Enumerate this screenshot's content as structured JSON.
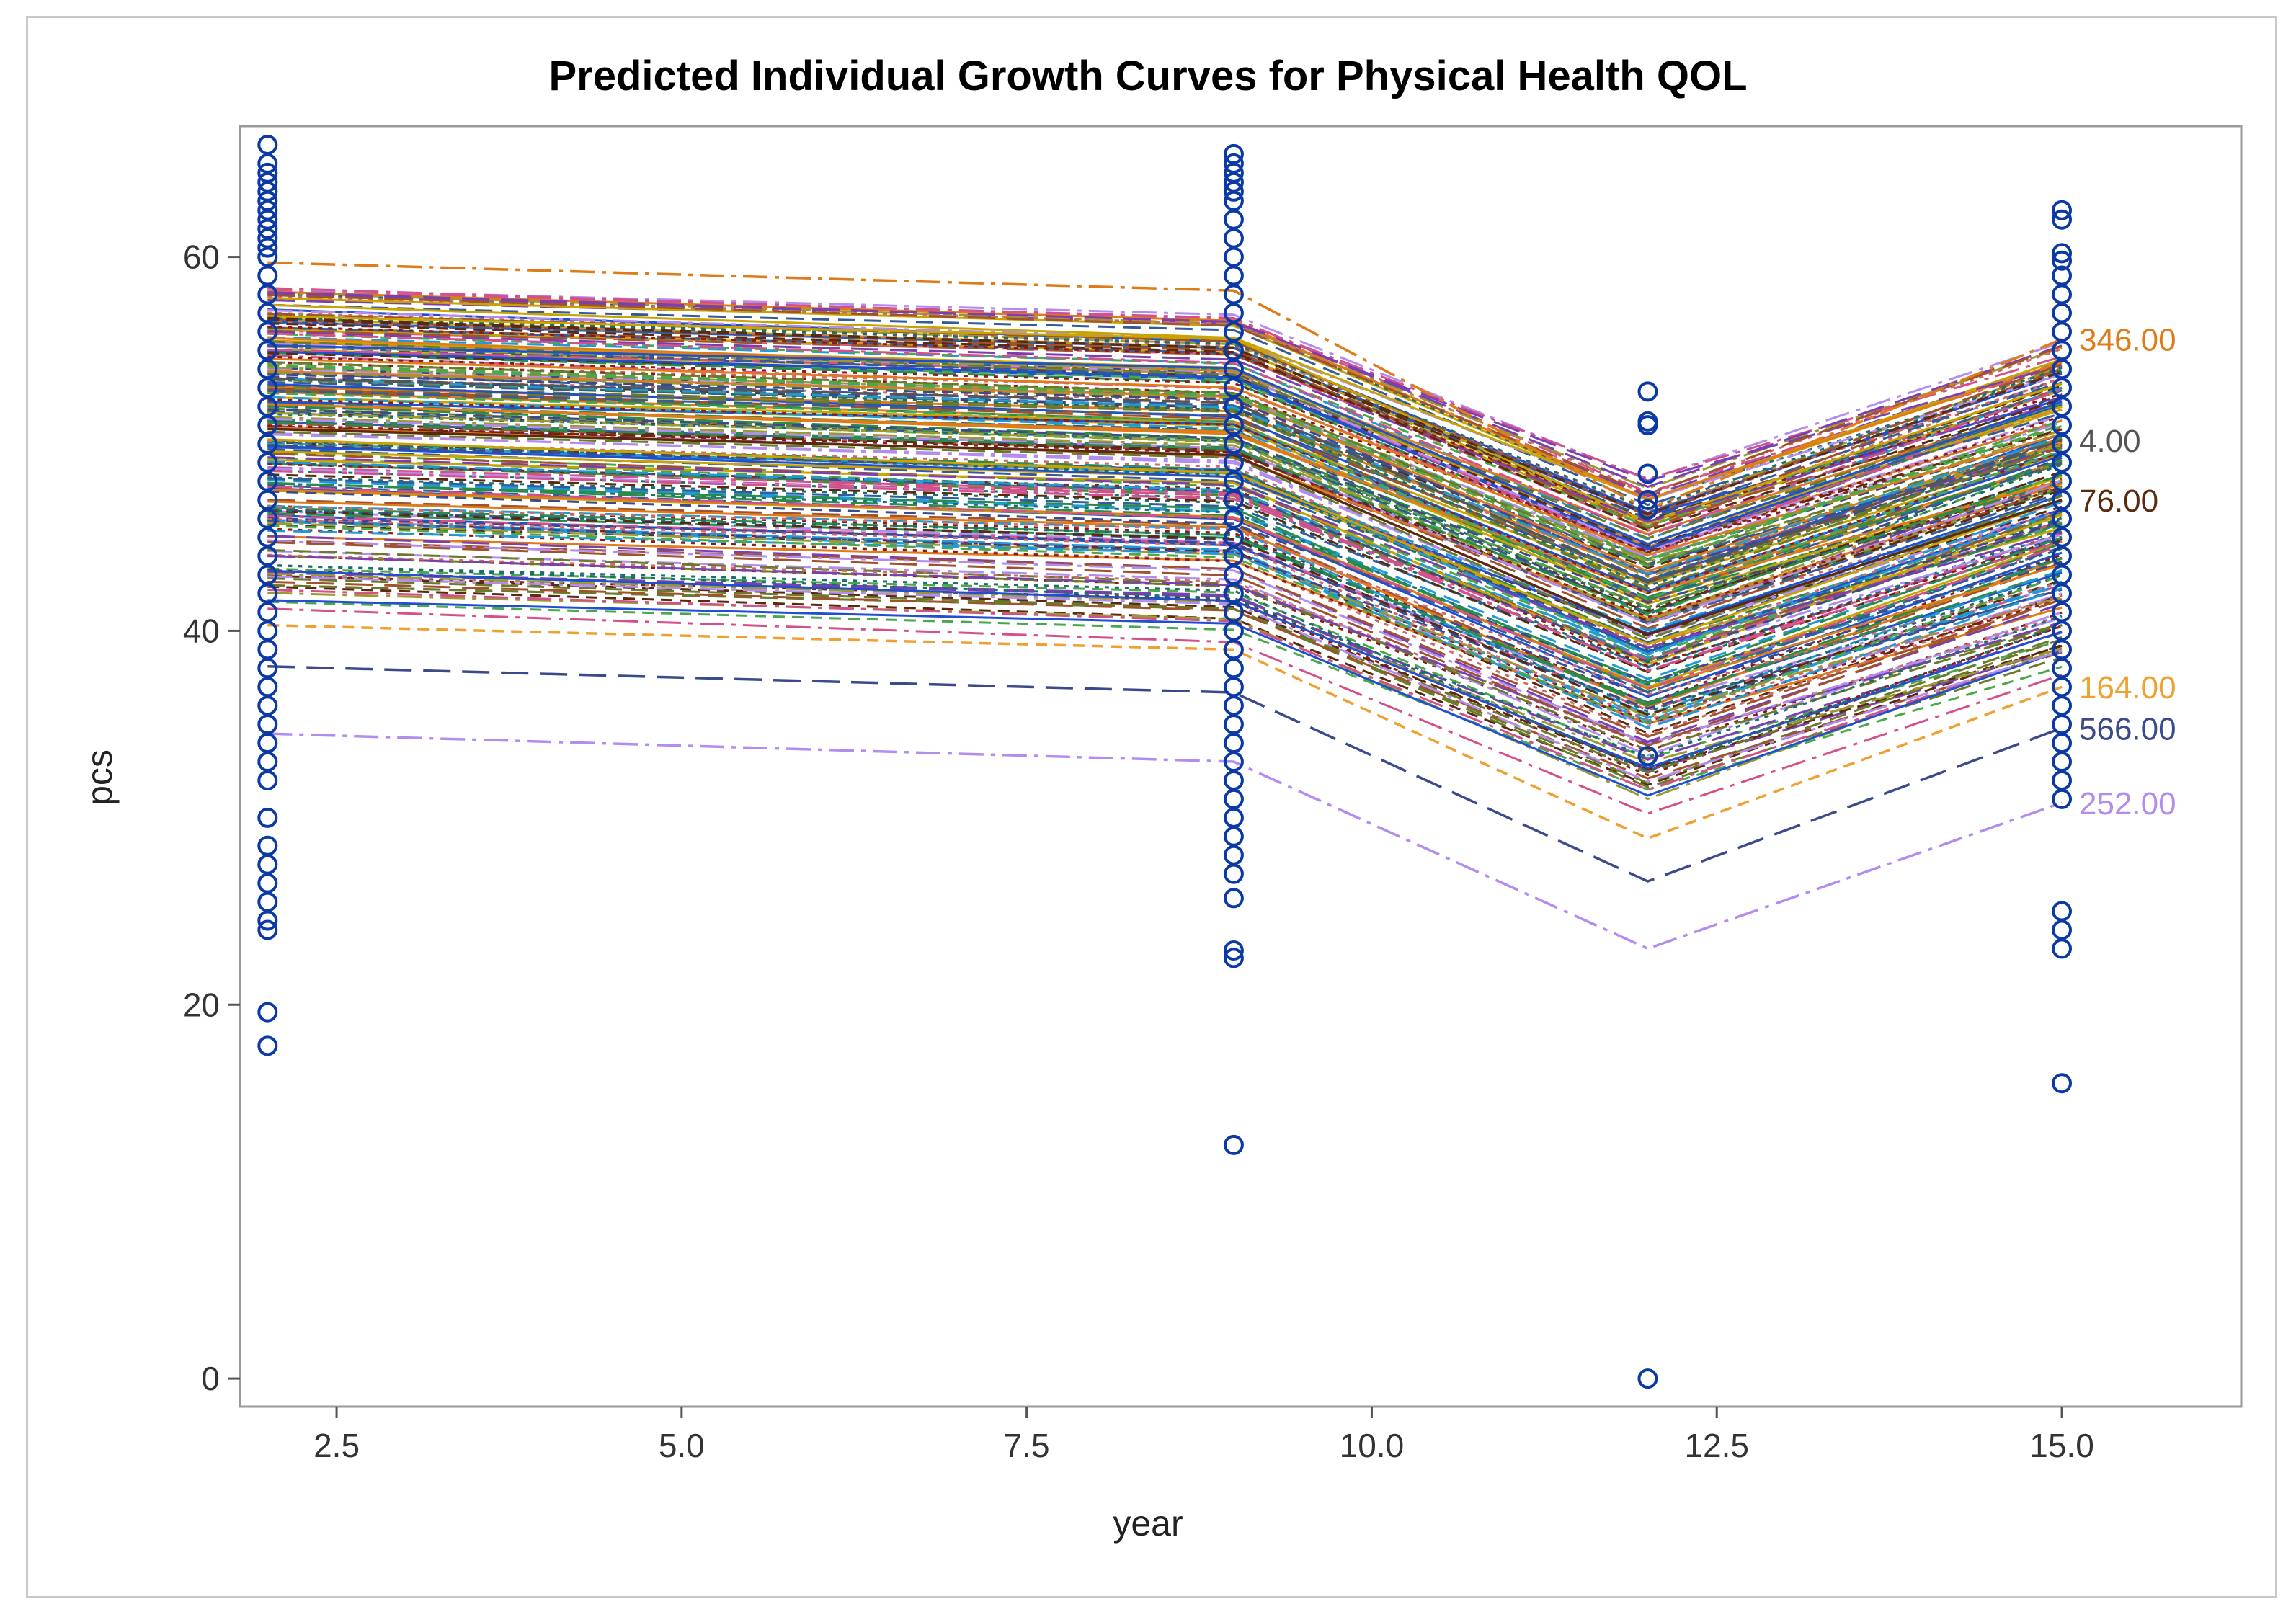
{
  "chart_data": {
    "type": "line",
    "title": "Predicted Individual Growth Curves for Physical Health QOL",
    "xlabel": "year",
    "ylabel": "pcs",
    "xlim": [
      1.8,
      16.3
    ],
    "ylim": [
      -1.5,
      67
    ],
    "x_ticks": [
      "2.5",
      "5.0",
      "7.5",
      "10.0",
      "12.5",
      "15.0"
    ],
    "x_tick_values": [
      2.5,
      5.0,
      7.5,
      10.0,
      12.5,
      15.0
    ],
    "y_ticks": [
      "0",
      "20",
      "40",
      "60"
    ],
    "y_tick_values": [
      0,
      20,
      40,
      60
    ],
    "grid": false,
    "predicted_x": [
      2,
      9,
      12,
      15
    ],
    "highlighted_series": [
      {
        "name": "346.00",
        "values": [
          59.7,
          58.2,
          46.5,
          55.6
        ],
        "color": "#e07b1a",
        "dash": "dashdot"
      },
      {
        "name": "76.00",
        "values": [
          50.8,
          49.4,
          39.8,
          47.0
        ],
        "color": "#5a2a0e",
        "dash": "solid"
      },
      {
        "name": "566.00",
        "values": [
          38.1,
          36.7,
          26.6,
          34.8
        ],
        "color": "#3b4a8a",
        "dash": "longdash"
      },
      {
        "name": "252.00",
        "values": [
          34.5,
          33.0,
          23.0,
          30.8
        ],
        "color": "#b38cf0",
        "dash": "dashdot"
      },
      {
        "name": "164.00",
        "values": [
          40.3,
          39.0,
          28.9,
          37.0
        ],
        "color": "#f0a030",
        "dash": "shortdash"
      },
      {
        "name": "4.00",
        "values": [
          53.5,
          52.2,
          42.6,
          50.2
        ],
        "color": "#555555",
        "dash": "longdash"
      }
    ],
    "observed_points": {
      "year_2": [
        66,
        65,
        64.5,
        64,
        63.5,
        63,
        62.5,
        62,
        61.5,
        61,
        60.5,
        60,
        59,
        58,
        57,
        56,
        55,
        54,
        53,
        52,
        51,
        50,
        49,
        48,
        47,
        46,
        45,
        44,
        43,
        42,
        41,
        40,
        39,
        38,
        37,
        36,
        35,
        34,
        33,
        32,
        30,
        28.5,
        27.5,
        26.5,
        25.5,
        24.5,
        24,
        19.6,
        17.8
      ],
      "year_9": [
        65.5,
        65,
        64.5,
        64,
        63.5,
        63,
        62,
        61,
        60,
        59,
        58,
        57,
        56,
        55,
        54,
        53,
        52,
        51,
        50,
        49,
        48,
        47,
        46,
        45,
        44,
        43,
        42,
        41,
        40,
        39,
        38,
        37,
        36,
        35,
        34,
        33,
        32,
        31,
        30,
        29,
        28,
        27,
        25.7,
        22.9,
        22.5,
        12.5
      ],
      "year_12": [
        52.8,
        51.2,
        51,
        48.4,
        47,
        46.5,
        33.3,
        0
      ],
      "year_15": [
        62.5,
        62,
        60.2,
        59.8,
        59,
        58,
        57,
        56,
        55,
        54,
        53,
        52,
        51,
        50,
        49,
        48,
        47,
        46,
        45,
        44,
        43,
        42,
        41,
        40,
        39,
        38,
        37,
        36,
        35,
        34,
        33,
        32,
        31,
        25,
        24,
        23,
        15.8
      ]
    },
    "marker": "circle",
    "marker_color": "#0b3aa6",
    "n_curves_note_label": ""
  }
}
